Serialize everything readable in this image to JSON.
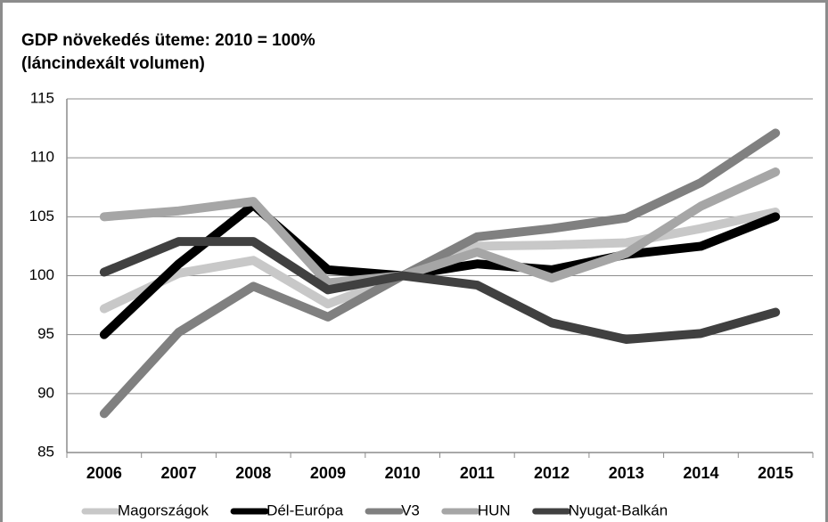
{
  "chart_data": {
    "type": "line",
    "title": "GDP növekedés üteme: 2010 = 100%",
    "subtitle": "(láncindexált volumen)",
    "categories": [
      "2006",
      "2007",
      "2008",
      "2009",
      "2010",
      "2011",
      "2012",
      "2013",
      "2014",
      "2015"
    ],
    "series": [
      {
        "name": "Magországok",
        "color": "#c8c8c8",
        "values": [
          97.2,
          100.2,
          101.3,
          97.6,
          100,
          102.5,
          102.6,
          102.8,
          104.0,
          105.4
        ]
      },
      {
        "name": "Dél-Európa",
        "color": "#000000",
        "values": [
          95.0,
          101.0,
          106.0,
          100.5,
          100,
          101.0,
          100.5,
          101.8,
          102.5,
          105.0
        ]
      },
      {
        "name": "V3",
        "color": "#808080",
        "values": [
          88.3,
          95.2,
          99.1,
          96.5,
          100,
          103.3,
          104.0,
          104.9,
          107.9,
          112.1
        ]
      },
      {
        "name": "HUN",
        "color": "#a6a6a6",
        "values": [
          105.0,
          105.5,
          106.3,
          99.4,
          100,
          102.0,
          99.8,
          101.9,
          105.9,
          108.8
        ]
      },
      {
        "name": "Nyugat-Balkán",
        "color": "#404040",
        "values": [
          100.3,
          102.9,
          102.9,
          98.8,
          100,
          99.2,
          96.0,
          94.6,
          95.1,
          96.9
        ]
      }
    ],
    "ylim": [
      85,
      115
    ],
    "yticks": [
      85,
      90,
      95,
      100,
      105,
      110,
      115
    ],
    "grid": true,
    "legend": "bottom"
  }
}
